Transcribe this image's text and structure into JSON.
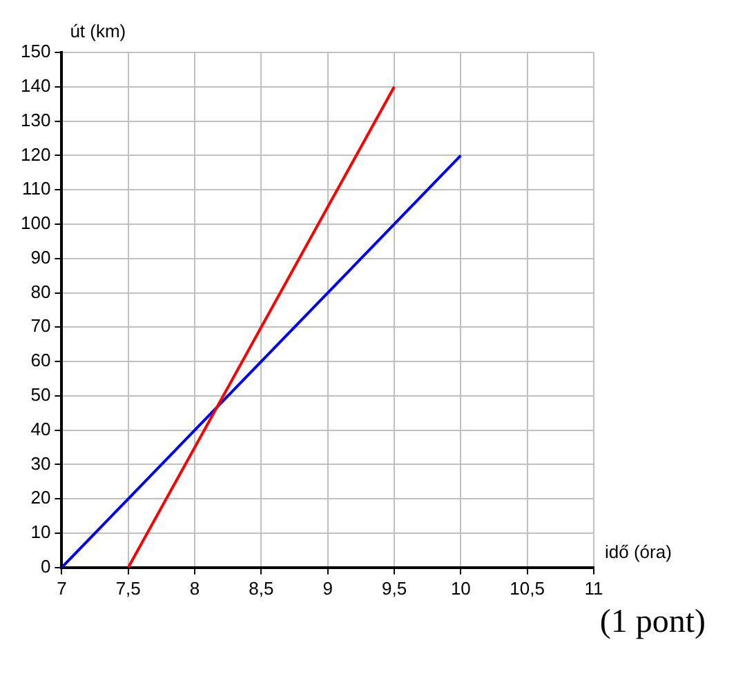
{
  "chart_data": {
    "type": "line",
    "xlabel": "idő (óra)",
    "ylabel": "út (km)",
    "series": [
      {
        "color": "#ff0000",
        "x": [
          7.5,
          9.5
        ],
        "values": [
          0,
          140
        ]
      },
      {
        "color": "#0000ff",
        "x": [
          7,
          10
        ],
        "values": [
          0,
          120
        ]
      }
    ],
    "xlim": [
      7,
      11
    ],
    "xticks": [
      7,
      {
        "value": 7.5,
        "label": "7,5"
      },
      8,
      {
        "value": 8.5,
        "label": "8,5"
      },
      9,
      {
        "value": 9.5,
        "label": "9,5"
      },
      10,
      {
        "value": 10.5,
        "label": "10,5"
      },
      11
    ],
    "ylim": [
      0,
      150
    ],
    "yticks": [
      0,
      10,
      20,
      30,
      40,
      50,
      60,
      70,
      80,
      90,
      100,
      110,
      120,
      130,
      140,
      150
    ],
    "grid": true,
    "legend": false,
    "marker": "none",
    "line_style": "solid",
    "annotations": [
      "(1 pont)"
    ]
  }
}
